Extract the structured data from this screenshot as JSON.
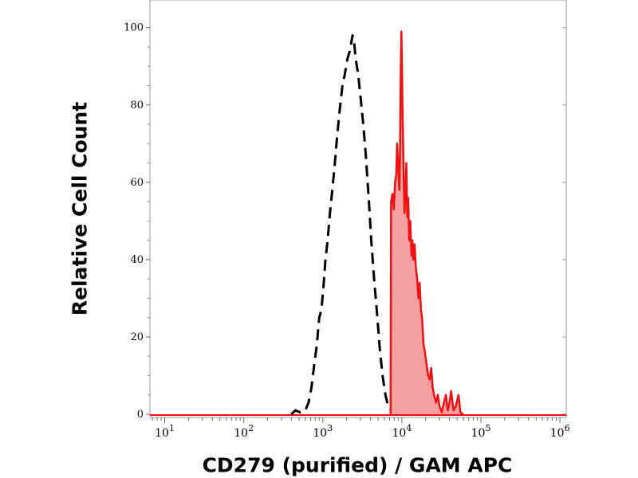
{
  "chart_data": {
    "type": "area",
    "xlabel": "CD279 (purified) / GAM APC",
    "ylabel": "Relative Cell Count",
    "x_scale": "log",
    "xlim": [
      6.5,
      1200000
    ],
    "ylim": [
      0,
      102
    ],
    "y_ticks": [
      0,
      20,
      40,
      60,
      80,
      100
    ],
    "x_ticks": [
      {
        "value": 10,
        "base": "10",
        "exp": "1"
      },
      {
        "value": 100,
        "base": "10",
        "exp": "2"
      },
      {
        "value": 1000,
        "base": "10",
        "exp": "3"
      },
      {
        "value": 10000,
        "base": "10",
        "exp": "4"
      },
      {
        "value": 100000,
        "base": "10",
        "exp": "5"
      },
      {
        "value": 1000000,
        "base": "10",
        "exp": "6"
      }
    ],
    "grid": false,
    "series": [
      {
        "style": "dashed",
        "color": "#000000",
        "fill": "none",
        "points": [
          [
            400,
            0
          ],
          [
            450,
            1
          ],
          [
            520,
            0.5
          ],
          [
            600,
            1
          ],
          [
            660,
            3
          ],
          [
            720,
            7
          ],
          [
            780,
            13
          ],
          [
            840,
            18
          ],
          [
            900,
            25
          ],
          [
            960,
            27
          ],
          [
            1020,
            33
          ],
          [
            1080,
            40
          ],
          [
            1150,
            45
          ],
          [
            1230,
            52
          ],
          [
            1320,
            58
          ],
          [
            1420,
            65
          ],
          [
            1520,
            72
          ],
          [
            1640,
            79
          ],
          [
            1770,
            85
          ],
          [
            1900,
            88
          ],
          [
            2050,
            92
          ],
          [
            2200,
            94
          ],
          [
            2380,
            98
          ],
          [
            2500,
            96
          ],
          [
            2600,
            92
          ],
          [
            2800,
            88
          ],
          [
            3000,
            82
          ],
          [
            3250,
            75
          ],
          [
            3500,
            67
          ],
          [
            3800,
            56
          ],
          [
            4100,
            45
          ],
          [
            4450,
            35
          ],
          [
            4850,
            26
          ],
          [
            5250,
            17
          ],
          [
            5700,
            10
          ],
          [
            6200,
            5
          ],
          [
            6700,
            2
          ],
          [
            7300,
            1
          ],
          [
            8000,
            0.5
          ],
          [
            8800,
            0
          ]
        ]
      },
      {
        "style": "solid",
        "color": "#ee1111",
        "fill": "#f4a0a0",
        "points": [
          [
            7200,
            0
          ],
          [
            7300,
            55
          ],
          [
            7600,
            57
          ],
          [
            7900,
            53
          ],
          [
            8200,
            60
          ],
          [
            8500,
            62
          ],
          [
            8700,
            70
          ],
          [
            8900,
            66
          ],
          [
            9100,
            62
          ],
          [
            9300,
            58
          ],
          [
            9500,
            70
          ],
          [
            9700,
            90
          ],
          [
            9850,
            99
          ],
          [
            10000,
            92
          ],
          [
            10200,
            78
          ],
          [
            10500,
            64
          ],
          [
            10800,
            52
          ],
          [
            11100,
            57
          ],
          [
            11400,
            65
          ],
          [
            11700,
            51
          ],
          [
            12000,
            56
          ],
          [
            12400,
            45
          ],
          [
            12800,
            50
          ],
          [
            13200,
            41
          ],
          [
            13600,
            45
          ],
          [
            14000,
            40
          ],
          [
            14500,
            44
          ],
          [
            15000,
            38
          ],
          [
            15600,
            35
          ],
          [
            16200,
            30
          ],
          [
            16800,
            34
          ],
          [
            17400,
            27
          ],
          [
            18000,
            25
          ],
          [
            18800,
            18
          ],
          [
            19600,
            16
          ],
          [
            20500,
            13
          ],
          [
            21500,
            10
          ],
          [
            22500,
            9
          ],
          [
            23500,
            12
          ],
          [
            24500,
            7
          ],
          [
            25500,
            5
          ],
          [
            27000,
            3
          ],
          [
            28500,
            5
          ],
          [
            30000,
            2
          ],
          [
            32000,
            0.5
          ],
          [
            34000,
            3
          ],
          [
            36000,
            5
          ],
          [
            38000,
            1
          ],
          [
            40000,
            3
          ],
          [
            42000,
            6
          ],
          [
            45000,
            1
          ],
          [
            48000,
            2
          ],
          [
            52000,
            5
          ],
          [
            55000,
            0.5
          ],
          [
            60000,
            0
          ]
        ]
      }
    ]
  }
}
